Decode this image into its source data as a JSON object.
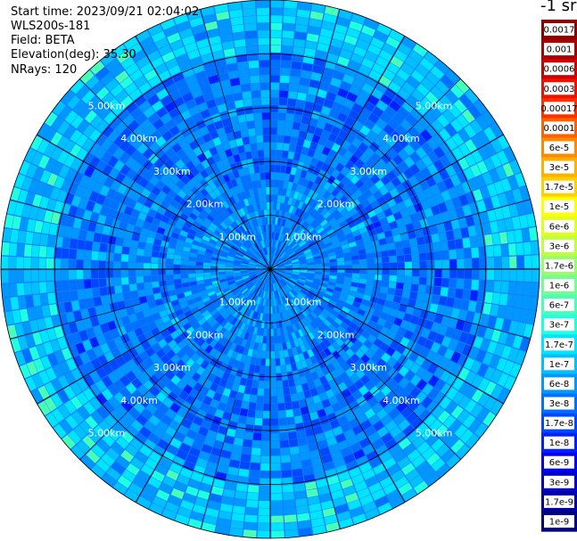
{
  "header": {
    "start_time": "Start time: 2023/09/21 02:04:02",
    "device": "WLS200s-181",
    "field": "Field: BETA",
    "elevation": "Elevation(deg): 35.30",
    "nrays": "NRays: 120"
  },
  "colorbar": {
    "unit_label": "-1 sr",
    "labels": [
      "0.0017",
      "0.001",
      "0.0006",
      "0.0003",
      "0.00017",
      "0.0001",
      "6e-5",
      "3e-5",
      "1.7e-5",
      "1e-5",
      "6e-6",
      "3e-6",
      "1.7e-6",
      "1e-6",
      "6e-7",
      "3e-7",
      "1.7e-7",
      "1e-7",
      "6e-8",
      "3e-8",
      "1.7e-8",
      "1e-8",
      "6e-9",
      "3e-9",
      "1.7e-9",
      "1e-9"
    ],
    "colors": [
      "#8b0000",
      "#a80000",
      "#cc0000",
      "#f01000",
      "#ff3000",
      "#ff6000",
      "#ff8a00",
      "#ffb000",
      "#ffd000",
      "#ffff00",
      "#e0ff20",
      "#c0ff40",
      "#98ff68",
      "#70ff90",
      "#48ffb8",
      "#20ffe0",
      "#00e4ff",
      "#00c0ff",
      "#0098ff",
      "#0070ff",
      "#0048ff",
      "#0020ff",
      "#0000f0",
      "#0000c8",
      "#0000a0",
      "#000080"
    ]
  },
  "chart_data": {
    "type": "heatmap",
    "projection": "polar-ppi",
    "field": "BETA",
    "nrays": 120,
    "max_range_km": 5.0,
    "range_rings_km": [
      1,
      2,
      3,
      4,
      5
    ],
    "ring_labels": [
      "1.00km",
      "2.00km",
      "3.00km",
      "4.00km",
      "5.00km"
    ],
    "radial_spokes_deg": [
      0,
      30,
      60,
      90,
      120,
      150
    ],
    "azimuth_gridlines_deg": [
      15,
      45,
      75,
      105,
      135,
      165
    ],
    "colorscale": "log",
    "value_range": [
      1e-09,
      0.0017
    ],
    "typical_values": {
      "inner_0_1km": "1e-7",
      "middle_1_4km": "1e-8",
      "outer_4_5km": "1.7e-7"
    }
  }
}
